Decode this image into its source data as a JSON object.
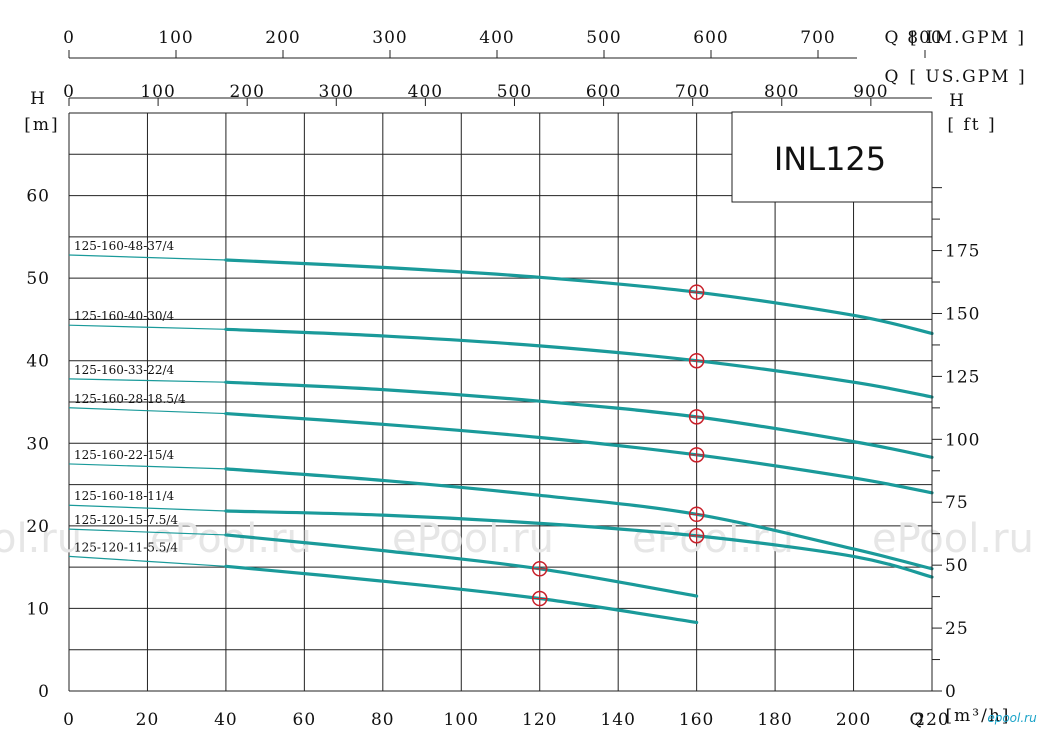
{
  "chart_data": {
    "type": "line",
    "title": "INL125",
    "x": {
      "label": "Q",
      "unit": "[m³/h]",
      "range": [
        0,
        220
      ],
      "ticks": [
        0,
        20,
        40,
        60,
        80,
        100,
        120,
        140,
        160,
        180,
        200,
        220
      ]
    },
    "x_top_im": {
      "label": "Q",
      "unit": "[ IM.GPM ]",
      "ticks": [
        0,
        100,
        200,
        300,
        400,
        500,
        600,
        700,
        800
      ]
    },
    "x_top_us": {
      "label": "Q",
      "unit": "[ US.GPM ]",
      "ticks": [
        0,
        100,
        200,
        300,
        400,
        500,
        600,
        700,
        800,
        900
      ]
    },
    "y_left": {
      "label": "H",
      "unit": "[m]",
      "range": [
        0,
        70
      ],
      "ticks": [
        0,
        10,
        20,
        30,
        40,
        50,
        60
      ]
    },
    "y_right": {
      "label": "H",
      "unit": "[ ft ]",
      "ticks": [
        0,
        25,
        50,
        75,
        100,
        125,
        150,
        175
      ]
    },
    "series": [
      {
        "name": "125-160-48-37/4",
        "x": [
          0,
          40,
          80,
          120,
          160,
          200,
          220
        ],
        "y": [
          52.8,
          52.2,
          51.3,
          50.1,
          48.3,
          45.5,
          43.3
        ],
        "duty_point": [
          160,
          48.3
        ]
      },
      {
        "name": "125-160-40-30/4",
        "x": [
          0,
          40,
          80,
          120,
          160,
          200,
          220
        ],
        "y": [
          44.3,
          43.8,
          43.0,
          41.8,
          40.0,
          37.4,
          35.6
        ],
        "duty_point": [
          160,
          40.0
        ]
      },
      {
        "name": "125-160-33-22/4",
        "x": [
          0,
          40,
          80,
          120,
          160,
          200,
          220
        ],
        "y": [
          37.8,
          37.4,
          36.5,
          35.1,
          33.2,
          30.2,
          28.3
        ],
        "duty_point": [
          160,
          33.2
        ]
      },
      {
        "name": "125-160-28-18.5/4",
        "x": [
          0,
          40,
          80,
          120,
          160,
          200,
          220
        ],
        "y": [
          34.3,
          33.6,
          32.3,
          30.7,
          28.6,
          25.8,
          24.0
        ],
        "duty_point": [
          160,
          28.6
        ]
      },
      {
        "name": "125-160-22-15/4",
        "x": [
          0,
          40,
          80,
          120,
          160,
          200,
          220
        ],
        "y": [
          27.5,
          26.9,
          25.5,
          23.7,
          21.4,
          17.2,
          14.8
        ],
        "duty_point": [
          160,
          21.4
        ]
      },
      {
        "name": "125-160-18-11/4",
        "x": [
          0,
          40,
          80,
          120,
          160,
          200,
          220
        ],
        "y": [
          22.5,
          21.8,
          21.3,
          20.3,
          18.8,
          16.3,
          13.8
        ],
        "duty_point": [
          160,
          18.8
        ]
      },
      {
        "name": "125-120-15-7.5/4",
        "x": [
          0,
          40,
          80,
          120,
          160
        ],
        "y": [
          19.6,
          18.9,
          17.0,
          14.8,
          11.5
        ],
        "duty_point": [
          120,
          14.8
        ]
      },
      {
        "name": "125-120-11-5.5/4",
        "x": [
          0,
          40,
          80,
          120,
          160
        ],
        "y": [
          16.3,
          15.1,
          13.3,
          11.2,
          8.3
        ],
        "duty_point": [
          120,
          11.2
        ]
      }
    ],
    "grid": true,
    "line_color": "#1a9a9a",
    "duty_point_color": "#c8202a"
  },
  "watermark": {
    "text_left": "ol.ru",
    "text": "ePool.ru"
  },
  "brand": "epool.ru"
}
